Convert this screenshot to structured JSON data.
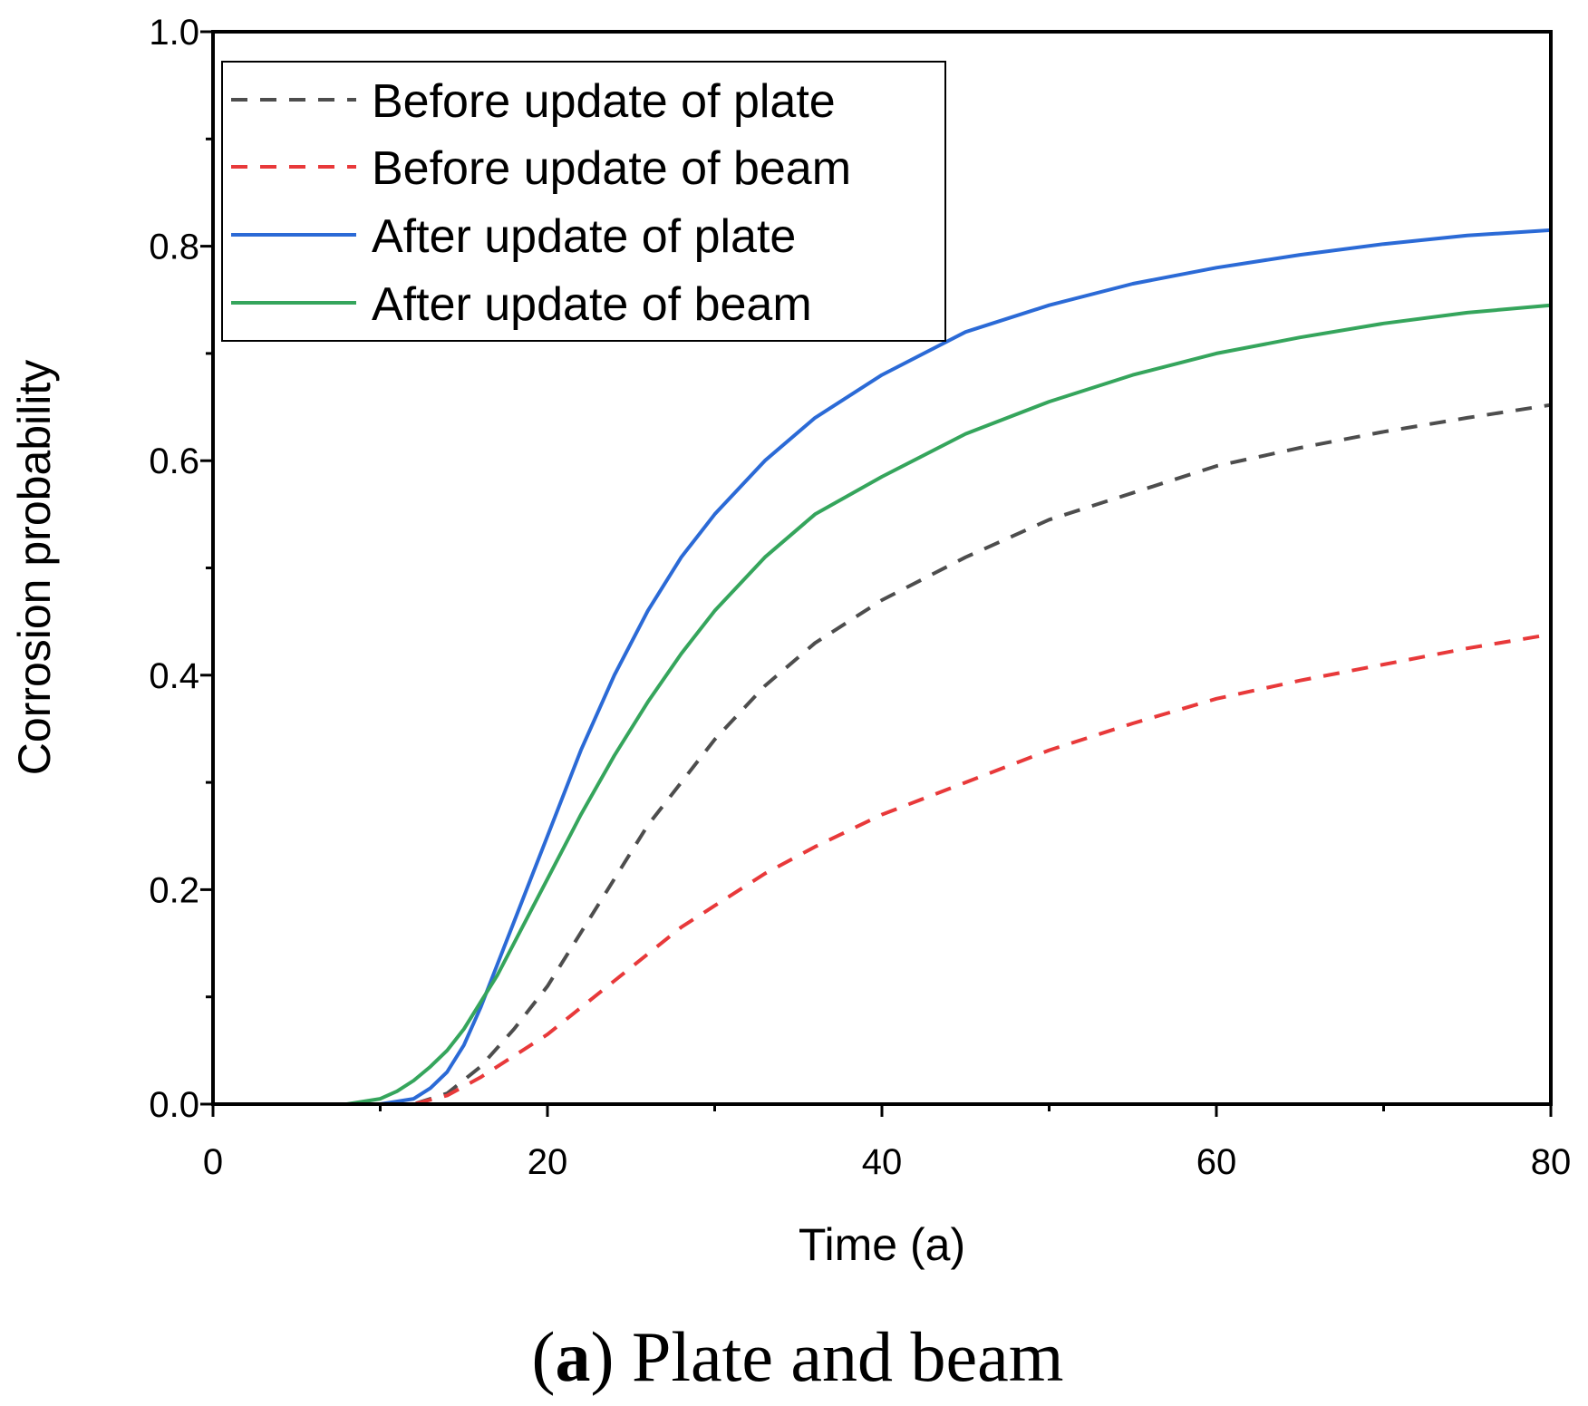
{
  "chart_data": {
    "type": "line",
    "xlabel": "Time (a)",
    "ylabel": "Corrosion probability",
    "xlim": [
      0,
      80
    ],
    "ylim": [
      0,
      1.0
    ],
    "x_ticks": [
      0,
      20,
      40,
      60,
      80
    ],
    "x_tick_labels": [
      "0",
      "20",
      "40",
      "60",
      "80"
    ],
    "y_ticks": [
      0,
      0.2,
      0.4,
      0.6,
      0.8,
      1.0
    ],
    "y_tick_labels": [
      "0.0",
      "0.2",
      "0.4",
      "0.6",
      "0.8",
      "1.0"
    ],
    "grid": false,
    "legend_position": "top-left",
    "caption_bold": "a",
    "caption_open": "(",
    "caption_rest": ") Plate and beam",
    "series": [
      {
        "name": "Before update of plate",
        "color": "#4d4d4d",
        "dashed": true,
        "x": [
          0,
          12,
          14,
          16,
          18,
          20,
          22,
          24,
          26,
          28,
          30,
          33,
          36,
          40,
          45,
          50,
          55,
          60,
          65,
          70,
          75,
          80
        ],
        "values": [
          0,
          0,
          0.01,
          0.035,
          0.07,
          0.11,
          0.16,
          0.21,
          0.26,
          0.3,
          0.34,
          0.39,
          0.43,
          0.47,
          0.51,
          0.545,
          0.57,
          0.595,
          0.612,
          0.627,
          0.64,
          0.652
        ]
      },
      {
        "name": "Before update of beam",
        "color": "#e8393a",
        "dashed": true,
        "x": [
          0,
          12,
          14,
          16,
          18,
          20,
          22,
          24,
          26,
          28,
          30,
          33,
          36,
          40,
          45,
          50,
          55,
          60,
          65,
          70,
          75,
          80
        ],
        "values": [
          0,
          0,
          0.008,
          0.025,
          0.045,
          0.065,
          0.09,
          0.115,
          0.14,
          0.165,
          0.185,
          0.215,
          0.24,
          0.27,
          0.3,
          0.33,
          0.355,
          0.378,
          0.395,
          0.41,
          0.425,
          0.438
        ]
      },
      {
        "name": "After update of plate",
        "color": "#2b6ad6",
        "dashed": false,
        "x": [
          0,
          10,
          12,
          13,
          14,
          15,
          16,
          17,
          18,
          19,
          20,
          22,
          24,
          26,
          28,
          30,
          33,
          36,
          40,
          45,
          50,
          55,
          60,
          65,
          70,
          75,
          80
        ],
        "values": [
          0,
          0,
          0.005,
          0.015,
          0.03,
          0.055,
          0.09,
          0.13,
          0.17,
          0.21,
          0.25,
          0.33,
          0.4,
          0.46,
          0.51,
          0.55,
          0.6,
          0.64,
          0.68,
          0.72,
          0.745,
          0.765,
          0.78,
          0.792,
          0.802,
          0.81,
          0.815
        ]
      },
      {
        "name": "After update of beam",
        "color": "#35a55c",
        "dashed": false,
        "x": [
          0,
          8,
          10,
          11,
          12,
          13,
          14,
          15,
          16,
          17,
          18,
          19,
          20,
          22,
          24,
          26,
          28,
          30,
          33,
          36,
          40,
          45,
          50,
          55,
          60,
          65,
          70,
          75,
          80
        ],
        "values": [
          0,
          0,
          0.005,
          0.012,
          0.022,
          0.035,
          0.05,
          0.07,
          0.095,
          0.12,
          0.15,
          0.18,
          0.21,
          0.27,
          0.325,
          0.375,
          0.42,
          0.46,
          0.51,
          0.55,
          0.585,
          0.625,
          0.655,
          0.68,
          0.7,
          0.715,
          0.728,
          0.738,
          0.745
        ]
      }
    ]
  }
}
